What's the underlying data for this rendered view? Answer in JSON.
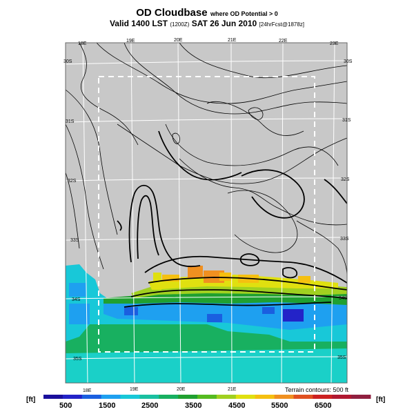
{
  "header": {
    "title": "OD Cloudbase",
    "subtitle": "where OD Potential > 0",
    "valid_prefix": "Valid 1400 LST",
    "valid_utc": "(1200Z)",
    "valid_date": "SAT 26 Jun 2010",
    "forecast_info": "[24hrFcst@1878z]"
  },
  "map": {
    "lon_labels_top": [
      "18E",
      "19E",
      "20E",
      "21E",
      "22E",
      "23E"
    ],
    "lon_labels_bottom": [
      "18E",
      "19E",
      "20E",
      "21E"
    ],
    "lat_labels_left": [
      "30S",
      "31S",
      "32S",
      "33S",
      "34S",
      "35S"
    ],
    "lat_labels_right": [
      "30S",
      "31S",
      "32S",
      "33S",
      "34S",
      "35S"
    ],
    "terrain_note": "Terrain contours: 500 ft",
    "land_color": "#c8c8c8",
    "grid_color": "#ffffff",
    "contour_color": "#000000"
  },
  "colorbar": {
    "unit_left": "[ft]",
    "unit_right": "[ft]",
    "tick_labels": [
      "500",
      "1500",
      "2500",
      "3500",
      "4500",
      "5500",
      "6500"
    ],
    "colors": [
      "#1a0f9c",
      "#2323c8",
      "#1a5fe0",
      "#1ea0f0",
      "#18c8d8",
      "#1ac0a0",
      "#18b060",
      "#20a030",
      "#55bb20",
      "#a0d020",
      "#e0e010",
      "#f5c010",
      "#f09020",
      "#e05020",
      "#cc2020",
      "#b01830",
      "#902040"
    ]
  }
}
